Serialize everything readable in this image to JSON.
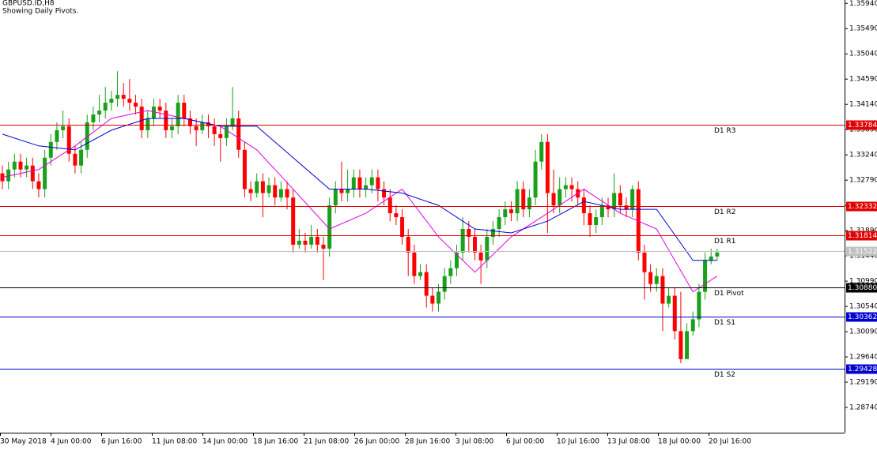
{
  "chart_data": {
    "type": "candlestick",
    "title": "GBPUSD.ID,H8",
    "subtitle": "Showing Daily Pivots.",
    "up_color": "#1aa01a",
    "down_color": "#ff0000",
    "ylim": [
      1.2829,
      1.36
    ],
    "yticks": [
      {
        "value": 1.3594,
        "label": "1.35940"
      },
      {
        "value": 1.3549,
        "label": "1.35490"
      },
      {
        "value": 1.3504,
        "label": "1.35040"
      },
      {
        "value": 1.3459,
        "label": "1.34590"
      },
      {
        "value": 1.3414,
        "label": "1.34140"
      },
      {
        "value": 1.3369,
        "label": "1.33690"
      },
      {
        "value": 1.3324,
        "label": "1.33240"
      },
      {
        "value": 1.3279,
        "label": "1.32790"
      },
      {
        "value": 1.3234,
        "label": "1.32340"
      },
      {
        "value": 1.3189,
        "label": "1.31890"
      },
      {
        "value": 1.3144,
        "label": "1.31440"
      },
      {
        "value": 1.3099,
        "label": "1.30990"
      },
      {
        "value": 1.3054,
        "label": "1.30540"
      },
      {
        "value": 1.3009,
        "label": "1.30090"
      },
      {
        "value": 1.2964,
        "label": "1.29640"
      },
      {
        "value": 1.2919,
        "label": "1.29190"
      },
      {
        "value": 1.2874,
        "label": "1.28740"
      }
    ],
    "xtick_labels": [
      "30 May 2018",
      "4 Jun 00:00",
      "6 Jun 16:00",
      "11 Jun 08:00",
      "14 Jun 00:00",
      "18 Jun 16:00",
      "21 Jun 08:00",
      "26 Jun 00:00",
      "28 Jun 16:00",
      "3 Jul 08:00",
      "6 Jul 00:00",
      "10 Jul 16:00",
      "13 Jul 08:00",
      "18 Jul 00:00",
      "20 Jul 16:00"
    ],
    "candles": [
      [
        1.3291,
        1.3305,
        1.3263,
        1.3277
      ],
      [
        1.3277,
        1.3312,
        1.3263,
        1.3298
      ],
      [
        1.3298,
        1.3326,
        1.3284,
        1.3312
      ],
      [
        1.3312,
        1.3326,
        1.3284,
        1.3298
      ],
      [
        1.3298,
        1.3319,
        1.3284,
        1.3305
      ],
      [
        1.3305,
        1.3319,
        1.3263,
        1.3277
      ],
      [
        1.3277,
        1.3291,
        1.3248,
        1.3263
      ],
      [
        1.3263,
        1.3333,
        1.3248,
        1.3319
      ],
      [
        1.3319,
        1.3361,
        1.3305,
        1.3347
      ],
      [
        1.3347,
        1.3382,
        1.3333,
        1.3368
      ],
      [
        1.3368,
        1.3403,
        1.3354,
        1.3375
      ],
      [
        1.3375,
        1.3389,
        1.3312,
        1.3326
      ],
      [
        1.3326,
        1.334,
        1.3291,
        1.3305
      ],
      [
        1.3305,
        1.3347,
        1.3291,
        1.3333
      ],
      [
        1.3333,
        1.3396,
        1.3319,
        1.3382
      ],
      [
        1.3382,
        1.341,
        1.3368,
        1.3396
      ],
      [
        1.3396,
        1.3431,
        1.3382,
        1.3403
      ],
      [
        1.3403,
        1.3445,
        1.3389,
        1.3417
      ],
      [
        1.3417,
        1.3438,
        1.3403,
        1.3424
      ],
      [
        1.3424,
        1.3473,
        1.341,
        1.3431
      ],
      [
        1.3431,
        1.3452,
        1.341,
        1.3424
      ],
      [
        1.3424,
        1.3459,
        1.3403,
        1.3417
      ],
      [
        1.3417,
        1.3431,
        1.3396,
        1.341
      ],
      [
        1.341,
        1.3424,
        1.3354,
        1.3368
      ],
      [
        1.3368,
        1.3403,
        1.3354,
        1.3389
      ],
      [
        1.3389,
        1.3424,
        1.3375,
        1.341
      ],
      [
        1.341,
        1.3424,
        1.3389,
        1.3403
      ],
      [
        1.3403,
        1.3417,
        1.3354,
        1.3368
      ],
      [
        1.3368,
        1.3389,
        1.3354,
        1.3375
      ],
      [
        1.3375,
        1.3431,
        1.3361,
        1.3417
      ],
      [
        1.3417,
        1.3431,
        1.3375,
        1.3389
      ],
      [
        1.3389,
        1.3403,
        1.3361,
        1.3375
      ],
      [
        1.3375,
        1.3389,
        1.334,
        1.3368
      ],
      [
        1.3368,
        1.3396,
        1.3361,
        1.3382
      ],
      [
        1.3382,
        1.3396,
        1.3354,
        1.3375
      ],
      [
        1.3375,
        1.3389,
        1.334,
        1.3361
      ],
      [
        1.3361,
        1.3375,
        1.3312,
        1.3354
      ],
      [
        1.3354,
        1.3389,
        1.334,
        1.3375
      ],
      [
        1.3375,
        1.3445,
        1.3368,
        1.3389
      ],
      [
        1.3389,
        1.3403,
        1.3319,
        1.3333
      ],
      [
        1.3333,
        1.3347,
        1.3248,
        1.3263
      ],
      [
        1.3263,
        1.3277,
        1.3241,
        1.3256
      ],
      [
        1.3256,
        1.3291,
        1.3248,
        1.3277
      ],
      [
        1.3277,
        1.3291,
        1.3213,
        1.3256
      ],
      [
        1.3256,
        1.3284,
        1.3248,
        1.327
      ],
      [
        1.327,
        1.3284,
        1.3234,
        1.3248
      ],
      [
        1.3248,
        1.3277,
        1.3241,
        1.3263
      ],
      [
        1.3263,
        1.3277,
        1.3227,
        1.3248
      ],
      [
        1.3248,
        1.3263,
        1.315,
        1.3164
      ],
      [
        1.3164,
        1.3192,
        1.3157,
        1.3171
      ],
      [
        1.3171,
        1.3185,
        1.315,
        1.3164
      ],
      [
        1.3164,
        1.3199,
        1.3157,
        1.3178
      ],
      [
        1.3178,
        1.3192,
        1.315,
        1.3164
      ],
      [
        1.3164,
        1.3178,
        1.3101,
        1.3157
      ],
      [
        1.3157,
        1.3248,
        1.3143,
        1.3234
      ],
      [
        1.3234,
        1.3277,
        1.322,
        1.3263
      ],
      [
        1.3263,
        1.3312,
        1.3241,
        1.3256
      ],
      [
        1.3256,
        1.3298,
        1.3241,
        1.3263
      ],
      [
        1.3263,
        1.3298,
        1.3248,
        1.3284
      ],
      [
        1.3284,
        1.3298,
        1.3248,
        1.3263
      ],
      [
        1.3263,
        1.3284,
        1.3248,
        1.327
      ],
      [
        1.327,
        1.3298,
        1.3256,
        1.3284
      ],
      [
        1.3284,
        1.3298,
        1.3241,
        1.3263
      ],
      [
        1.3263,
        1.3277,
        1.3234,
        1.3248
      ],
      [
        1.3248,
        1.3263,
        1.3206,
        1.322
      ],
      [
        1.322,
        1.3234,
        1.3199,
        1.3213
      ],
      [
        1.3213,
        1.3227,
        1.3164,
        1.3178
      ],
      [
        1.3178,
        1.3192,
        1.3108,
        1.315
      ],
      [
        1.315,
        1.3164,
        1.3094,
        1.3108
      ],
      [
        1.3108,
        1.3129,
        1.3101,
        1.3115
      ],
      [
        1.3115,
        1.3129,
        1.3052,
        1.3073
      ],
      [
        1.3073,
        1.3087,
        1.3045,
        1.3059
      ],
      [
        1.3059,
        1.3094,
        1.3045,
        1.308
      ],
      [
        1.308,
        1.3122,
        1.3066,
        1.3108
      ],
      [
        1.3108,
        1.3136,
        1.3094,
        1.3122
      ],
      [
        1.3122,
        1.3164,
        1.3108,
        1.315
      ],
      [
        1.315,
        1.3213,
        1.3136,
        1.3192
      ],
      [
        1.3192,
        1.3206,
        1.315,
        1.3178
      ],
      [
        1.3178,
        1.3192,
        1.3136,
        1.315
      ],
      [
        1.315,
        1.3164,
        1.3094,
        1.3136
      ],
      [
        1.3136,
        1.3192,
        1.3122,
        1.3178
      ],
      [
        1.3178,
        1.3206,
        1.3164,
        1.3192
      ],
      [
        1.3192,
        1.3227,
        1.3178,
        1.3213
      ],
      [
        1.3213,
        1.3241,
        1.3199,
        1.3227
      ],
      [
        1.3227,
        1.3241,
        1.3206,
        1.322
      ],
      [
        1.322,
        1.3277,
        1.3206,
        1.3263
      ],
      [
        1.3263,
        1.3277,
        1.3213,
        1.3227
      ],
      [
        1.3227,
        1.3263,
        1.3213,
        1.3248
      ],
      [
        1.3248,
        1.3333,
        1.3234,
        1.3312
      ],
      [
        1.3312,
        1.3361,
        1.3298,
        1.3347
      ],
      [
        1.3347,
        1.3361,
        1.3185,
        1.3256
      ],
      [
        1.3256,
        1.3298,
        1.322,
        1.3234
      ],
      [
        1.3234,
        1.3284,
        1.322,
        1.3263
      ],
      [
        1.3263,
        1.3284,
        1.3248,
        1.327
      ],
      [
        1.327,
        1.3284,
        1.3241,
        1.3263
      ],
      [
        1.3263,
        1.3277,
        1.3234,
        1.3248
      ],
      [
        1.3248,
        1.3263,
        1.3199,
        1.322
      ],
      [
        1.322,
        1.3234,
        1.3178,
        1.3199
      ],
      [
        1.3199,
        1.3227,
        1.3185,
        1.3213
      ],
      [
        1.3213,
        1.3248,
        1.3199,
        1.3234
      ],
      [
        1.3234,
        1.3248,
        1.3213,
        1.3227
      ],
      [
        1.3227,
        1.3291,
        1.3213,
        1.3256
      ],
      [
        1.3256,
        1.327,
        1.322,
        1.3234
      ],
      [
        1.3234,
        1.3248,
        1.3213,
        1.3227
      ],
      [
        1.3227,
        1.327,
        1.3213,
        1.3263
      ],
      [
        1.3263,
        1.3277,
        1.3136,
        1.315
      ],
      [
        1.315,
        1.3164,
        1.3066,
        1.3115
      ],
      [
        1.3115,
        1.3129,
        1.308,
        1.3094
      ],
      [
        1.3094,
        1.3122,
        1.308,
        1.3108
      ],
      [
        1.3108,
        1.3122,
        1.301,
        1.3059
      ],
      [
        1.3059,
        1.3087,
        1.3052,
        1.3073
      ],
      [
        1.3073,
        1.3087,
        1.2995,
        1.301
      ],
      [
        1.301,
        1.308,
        1.2953,
        1.296
      ],
      [
        1.296,
        1.3024,
        1.296,
        1.301
      ],
      [
        1.301,
        1.3045,
        1.3002,
        1.3031
      ],
      [
        1.3031,
        1.3094,
        1.3017,
        1.308
      ],
      [
        1.308,
        1.315,
        1.3066,
        1.3136
      ],
      [
        1.3136,
        1.3157,
        1.3129,
        1.3143
      ],
      [
        1.3143,
        1.3157,
        1.3136,
        1.315
      ]
    ],
    "series": [
      {
        "color": "#e100e1",
        "x": [
          0,
          6,
          12,
          18,
          24,
          30,
          36,
          42,
          48,
          54,
          60,
          66,
          72,
          78,
          84,
          90,
          96,
          102,
          108,
          114,
          118
        ],
        "values": [
          1.3284,
          1.3298,
          1.334,
          1.3389,
          1.3403,
          1.3389,
          1.3375,
          1.3333,
          1.3263,
          1.3192,
          1.322,
          1.3263,
          1.3178,
          1.3115,
          1.3178,
          1.322,
          1.3263,
          1.322,
          1.3192,
          1.308,
          1.3108
        ]
      },
      {
        "color": "#0000d0",
        "x": [
          0,
          6,
          12,
          18,
          24,
          30,
          36,
          42,
          48,
          54,
          60,
          66,
          72,
          78,
          84,
          90,
          96,
          102,
          108,
          114,
          118
        ],
        "values": [
          1.3361,
          1.334,
          1.3333,
          1.3368,
          1.3389,
          1.3389,
          1.3375,
          1.3375,
          1.3319,
          1.3263,
          1.3263,
          1.3256,
          1.3234,
          1.3192,
          1.3185,
          1.3206,
          1.3241,
          1.3227,
          1.3227,
          1.3136,
          1.3136
        ]
      }
    ],
    "levels": [
      {
        "name": "D1 R3",
        "value": 1.33784,
        "color": "#e00000"
      },
      {
        "name": "D1 R2",
        "value": 1.32332,
        "color": "#e00000"
      },
      {
        "name": "D1 R1",
        "value": 1.31814,
        "color": "#e00000"
      },
      {
        "value": 1.31522,
        "color": "#c0c0c0"
      },
      {
        "name": "D1 Pivot",
        "value": 1.3088,
        "value_label": "1.30880",
        "color": "#000000"
      },
      {
        "name": "D1 S1",
        "value": 1.30362,
        "color": "#0000d0"
      },
      {
        "name": "D1 S2",
        "value": 1.29428,
        "color": "#0000d0"
      }
    ]
  }
}
